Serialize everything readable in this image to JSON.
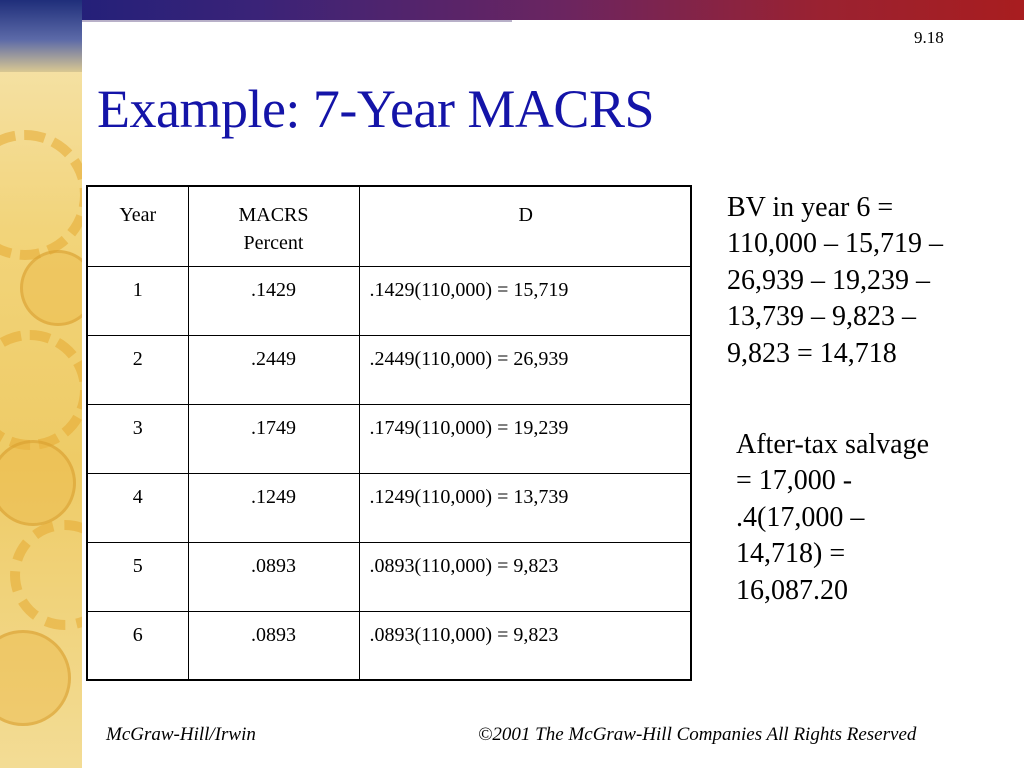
{
  "slide": {
    "number": "9.18",
    "title": "Example: 7-Year MACRS"
  },
  "table": {
    "headers": {
      "year": "Year",
      "percent_line1": "MACRS",
      "percent_line2": "Percent",
      "depreciation": "D"
    },
    "rows": [
      {
        "year": "1",
        "percent": ".1429",
        "depreciation": ".1429(110,000) = 15,719"
      },
      {
        "year": "2",
        "percent": ".2449",
        "depreciation": ".2449(110,000) = 26,939"
      },
      {
        "year": "3",
        "percent": ".1749",
        "depreciation": ".1749(110,000) = 19,239"
      },
      {
        "year": "4",
        "percent": ".1249",
        "depreciation": ".1249(110,000) = 13,739"
      },
      {
        "year": "5",
        "percent": ".0893",
        "depreciation": ".0893(110,000) = 9,823"
      },
      {
        "year": "6",
        "percent": ".0893",
        "depreciation": ".0893(110,000) = 9,823"
      }
    ]
  },
  "book_value": {
    "lines": [
      "BV in year 6 =",
      "110,000 – 15,719 –",
      "26,939 – 19,239 –",
      "13,739 – 9,823 –",
      "9,823 = 14,718"
    ]
  },
  "after_tax_salvage": {
    "lines": [
      "After-tax salvage",
      "= 17,000 -",
      ".4(17,000 –",
      "14,718) =",
      "16,087.20"
    ]
  },
  "footer": {
    "publisher": "McGraw-Hill/Irwin",
    "copyright": "©2001 The McGraw-Hill Companies All Rights Reserved"
  }
}
